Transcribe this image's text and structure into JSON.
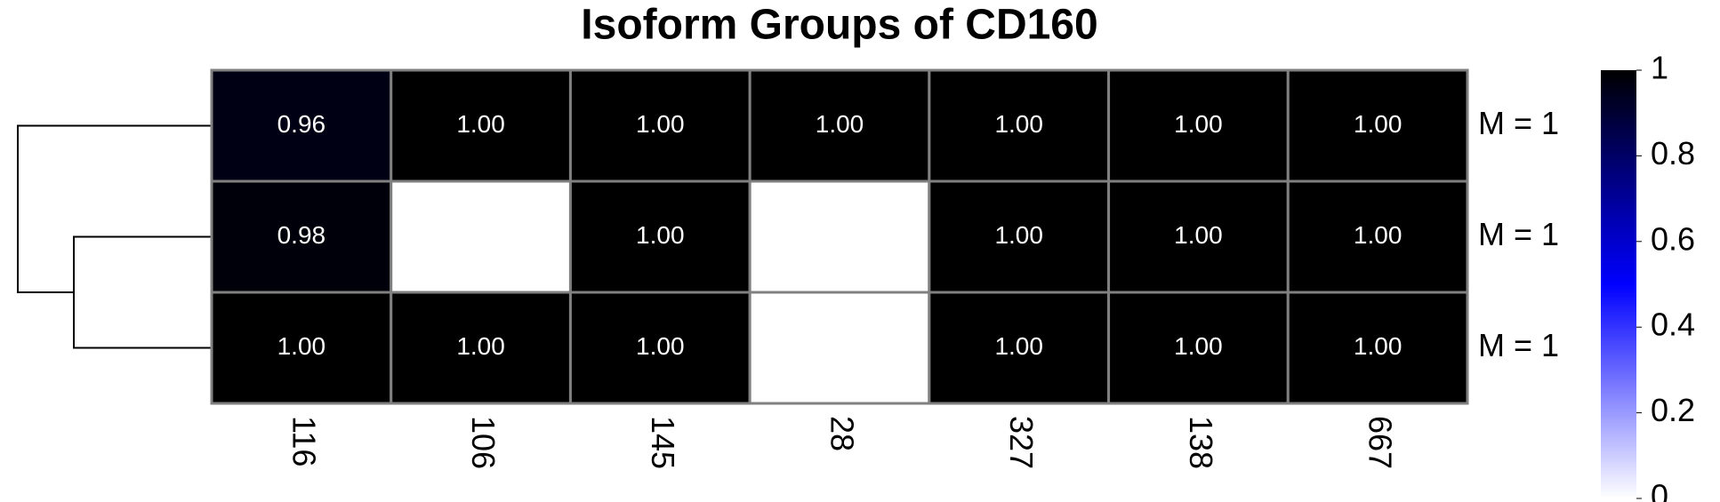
{
  "chart_data": {
    "type": "heatmap",
    "title": "Isoform Groups of CD160",
    "categories": [
      "116",
      "106",
      "145",
      "28",
      "327",
      "138",
      "667"
    ],
    "rows": [
      "M = 1",
      "M = 1",
      "M = 1"
    ],
    "values": [
      [
        0.96,
        1,
        1,
        1,
        1,
        1,
        1
      ],
      [
        0.98,
        null,
        1,
        null,
        1,
        1,
        1
      ],
      [
        1,
        1,
        1,
        null,
        1,
        1,
        1
      ]
    ],
    "value_labels": [
      [
        "0.96",
        "1.00",
        "1.00",
        "1.00",
        "1.00",
        "1.00",
        "1.00"
      ],
      [
        "0.98",
        null,
        "1.00",
        null,
        "1.00",
        "1.00",
        "1.00"
      ],
      [
        "1.00",
        "1.00",
        "1.00",
        null,
        "1.00",
        "1.00",
        "1.00"
      ]
    ],
    "colors": [
      "#ffffff",
      "#0000ff",
      "#000000"
    ],
    "clim": [
      0,
      1
    ],
    "cticks": [
      0,
      0.2,
      0.4,
      0.6,
      0.8,
      1
    ]
  }
}
